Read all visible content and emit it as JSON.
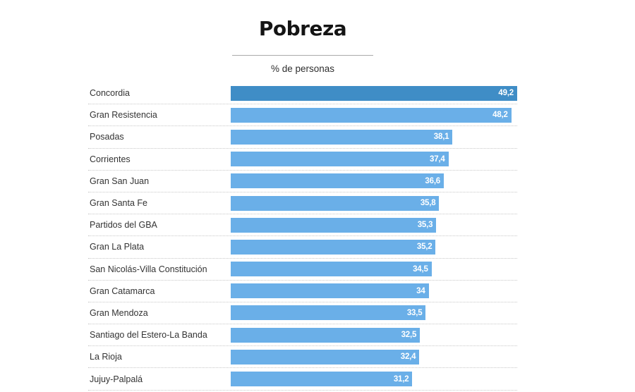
{
  "header": {
    "title": "Pobreza",
    "subtitle": "% de personas"
  },
  "chart_data": {
    "type": "bar",
    "orientation": "horizontal",
    "title": "Pobreza",
    "subtitle": "% de personas",
    "xlabel": "",
    "ylabel": "",
    "xlim": [
      0,
      49.2
    ],
    "grid": false,
    "legend": false,
    "categories": [
      "Concordia",
      "Gran Resistencia",
      "Posadas",
      "Corrientes",
      "Gran San Juan",
      "Gran Santa Fe",
      "Partidos del GBA",
      "Gran La Plata",
      "San Nicolás-Villa Constitución",
      "Gran Catamarca",
      "Gran Mendoza",
      "Santiago del Estero-La Banda",
      "La Rioja",
      "Jujuy-Palpalá"
    ],
    "values": [
      49.2,
      48.2,
      38.1,
      37.4,
      36.6,
      35.8,
      35.3,
      35.2,
      34.5,
      34,
      33.5,
      32.5,
      32.4,
      31.2
    ],
    "value_labels": [
      "49,2",
      "48,2",
      "38,1",
      "37,4",
      "36,6",
      "35,8",
      "35,3",
      "35,2",
      "34,5",
      "34",
      "33,5",
      "32,5",
      "32,4",
      "31,2"
    ],
    "highlight_index": 0,
    "colors": {
      "highlight_bar": "#3f8dc6",
      "bar": "#6aafe8",
      "value_text": "#ffffff",
      "label_text": "#333333",
      "separator": "#c8c8c8",
      "title_text": "#141414",
      "divider": "#aaaaaa"
    }
  }
}
